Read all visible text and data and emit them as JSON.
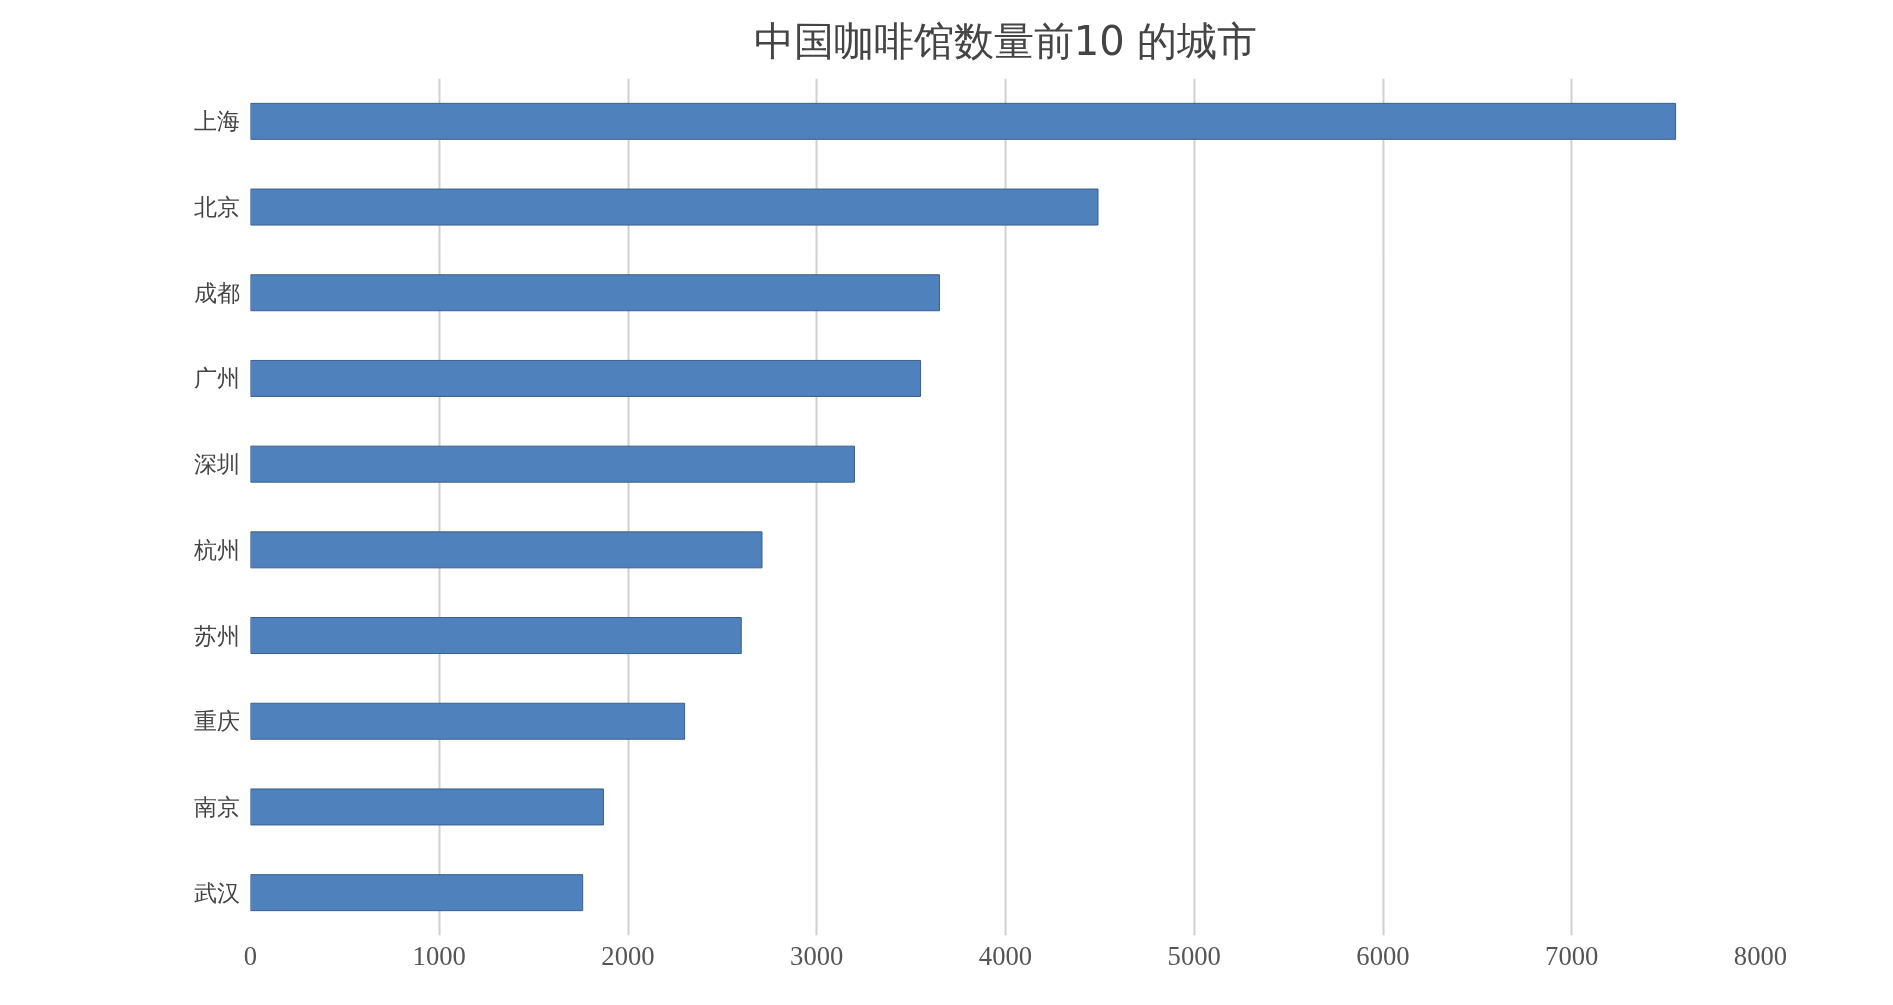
{
  "chart_data": {
    "type": "bar",
    "orientation": "horizontal",
    "title": "中国咖啡馆数量前10 的城市",
    "categories": [
      "上海",
      "北京",
      "成都",
      "广州",
      "深圳",
      "杭州",
      "苏州",
      "重庆",
      "南京",
      "武汉"
    ],
    "values": [
      7550,
      4490,
      3650,
      3550,
      3200,
      2710,
      2600,
      2300,
      1870,
      1760
    ],
    "color": "#4f81bd",
    "xlim": [
      0,
      8000
    ],
    "xticks": [
      0,
      1000,
      2000,
      3000,
      4000,
      5000,
      6000,
      7000,
      8000
    ],
    "grid": "x"
  }
}
